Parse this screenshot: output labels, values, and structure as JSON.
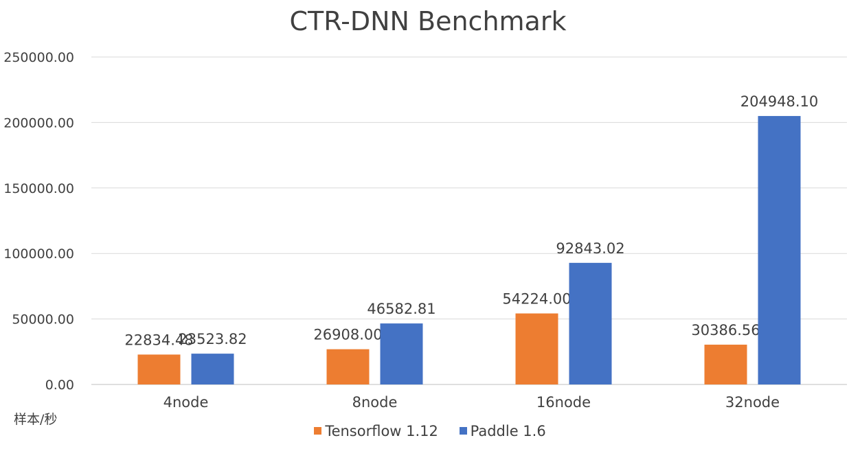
{
  "chart_data": {
    "type": "bar",
    "title": "CTR-DNN Benchmark",
    "ylabel": "样本/秒",
    "xlabel": "",
    "categories": [
      "4node",
      "8node",
      "16node",
      "32node"
    ],
    "series": [
      {
        "name": "Tensorflow 1.12",
        "color": "#ED7D31",
        "values": [
          22834.48,
          26908.0,
          54224.0,
          30386.56
        ],
        "labels": [
          "22834.48",
          "26908.00",
          "54224.00",
          "30386.56"
        ]
      },
      {
        "name": "Paddle 1.6",
        "color": "#4472C4",
        "values": [
          23523.82,
          46582.81,
          92843.02,
          204948.1
        ],
        "labels": [
          "23523.82",
          "46582.81",
          "92843.02",
          "204948.10"
        ]
      }
    ],
    "ylim": [
      0,
      250000
    ],
    "yticks": [
      0,
      50000,
      100000,
      150000,
      200000,
      250000
    ],
    "ytick_labels": [
      "0.00",
      "50000.00",
      "100000.00",
      "150000.00",
      "200000.00",
      "250000.00"
    ],
    "grid": true,
    "legend_position": "bottom"
  }
}
